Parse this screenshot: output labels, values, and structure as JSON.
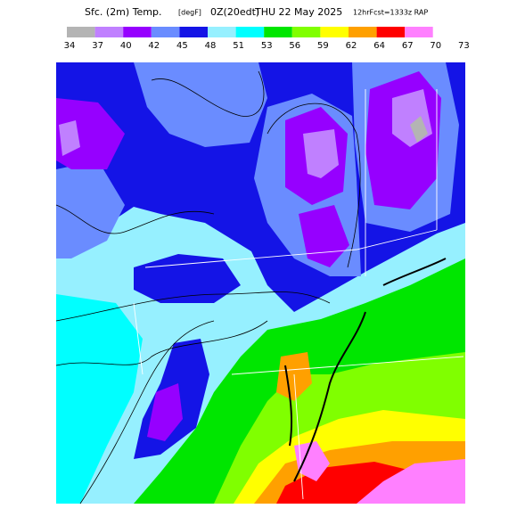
{
  "header": {
    "variable": "Sfc. (2m) Temp.",
    "units": "[degF]",
    "init": "0Z(20edt)",
    "valid": "THU 22 May 2025",
    "forecast": "12hrFcst=1333z RAP"
  },
  "legend": {
    "labels": [
      34,
      37,
      40,
      42,
      45,
      48,
      51,
      53,
      56,
      59,
      62,
      64,
      67,
      70,
      73
    ],
    "colors": [
      "#b4b4b4",
      "#c080ff",
      "#9600ff",
      "#6a8cff",
      "#1414e6",
      "#96f0ff",
      "#00ffff",
      "#00e600",
      "#80ff00",
      "#ffff00",
      "#ffa000",
      "#ff0000",
      "#ff80ff",
      "#ffffff"
    ]
  }
}
